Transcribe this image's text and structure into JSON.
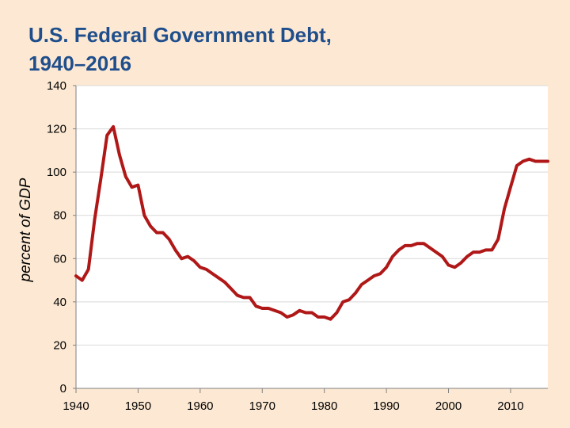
{
  "title": {
    "line1": "U.S. Federal Government Debt,",
    "line2": "1940–2016"
  },
  "colors": {
    "background": "#fde9d3",
    "title": "#1f4e8c",
    "series": "#b01818",
    "plot_background": "#ffffff",
    "gridline": "#d9d9d9"
  },
  "chart_data": {
    "type": "line",
    "title": "U.S. Federal Government Debt, 1940–2016",
    "xlabel": "",
    "ylabel": "percent of GDP",
    "xlim": [
      1940,
      2016
    ],
    "ylim": [
      0,
      140
    ],
    "xticks": [
      1940,
      1950,
      1960,
      1970,
      1980,
      1990,
      2000,
      2010
    ],
    "yticks": [
      0,
      20,
      40,
      60,
      80,
      100,
      120,
      140
    ],
    "grid": "horizontal",
    "legend": "none",
    "series": [
      {
        "color": "#b01818",
        "x": [
          1940,
          1941,
          1942,
          1943,
          1944,
          1945,
          1946,
          1947,
          1948,
          1949,
          1950,
          1951,
          1952,
          1953,
          1954,
          1955,
          1956,
          1957,
          1958,
          1959,
          1960,
          1961,
          1962,
          1963,
          1964,
          1965,
          1966,
          1967,
          1968,
          1969,
          1970,
          1971,
          1972,
          1973,
          1974,
          1975,
          1976,
          1977,
          1978,
          1979,
          1980,
          1981,
          1982,
          1983,
          1984,
          1985,
          1986,
          1987,
          1988,
          1989,
          1990,
          1991,
          1992,
          1993,
          1994,
          1995,
          1996,
          1997,
          1998,
          1999,
          2000,
          2001,
          2002,
          2003,
          2004,
          2005,
          2006,
          2007,
          2008,
          2009,
          2010,
          2011,
          2012,
          2013,
          2014,
          2015,
          2016
        ],
        "values": [
          52,
          50,
          55,
          78,
          97,
          117,
          121,
          108,
          98,
          93,
          94,
          80,
          75,
          72,
          72,
          69,
          64,
          60,
          61,
          59,
          56,
          55,
          53,
          51,
          49,
          46,
          43,
          42,
          42,
          38,
          37,
          37,
          36,
          35,
          33,
          34,
          36,
          35,
          35,
          33,
          33,
          32,
          35,
          40,
          41,
          44,
          48,
          50,
          52,
          53,
          56,
          61,
          64,
          66,
          66,
          67,
          67,
          65,
          63,
          61,
          57,
          56,
          58,
          61,
          63,
          63,
          64,
          64,
          69,
          83,
          93,
          103,
          105,
          106,
          105,
          105,
          105
        ]
      }
    ]
  }
}
